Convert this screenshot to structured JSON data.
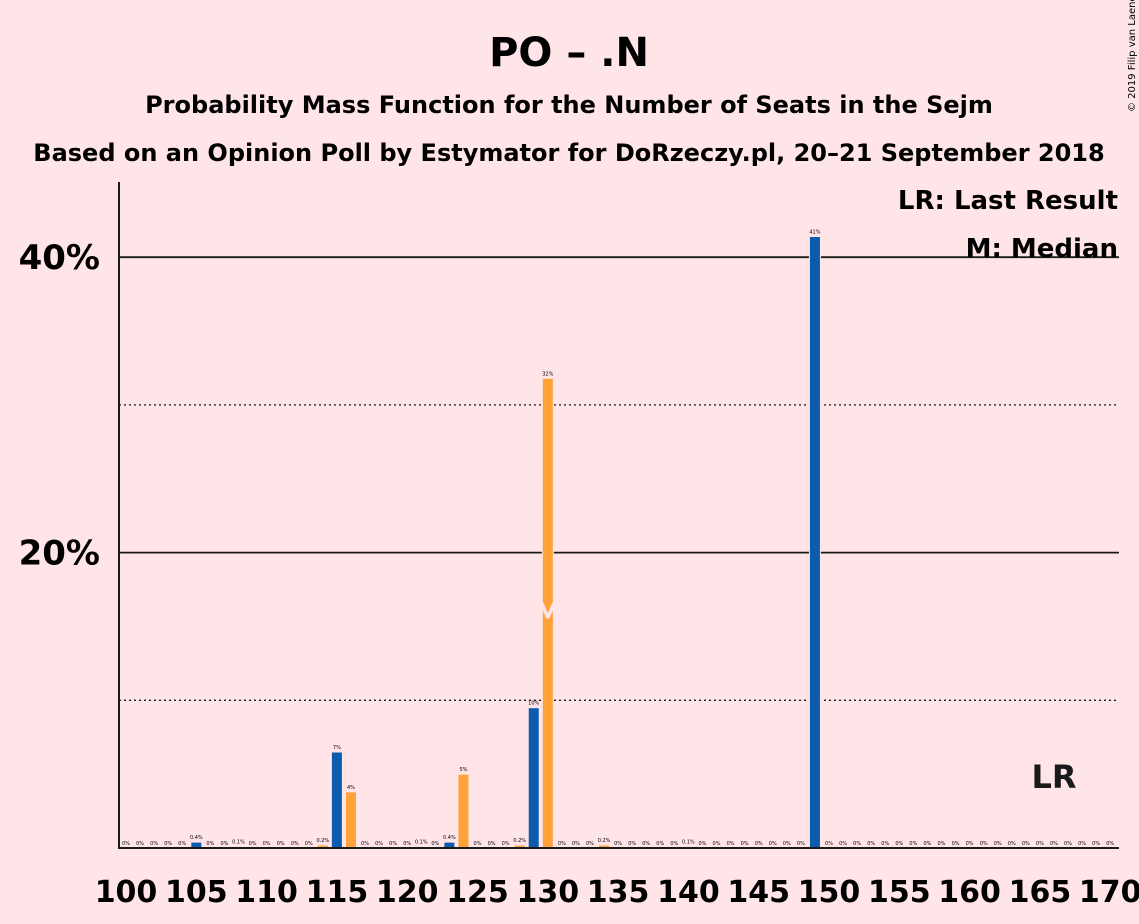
{
  "chart_data": {
    "type": "bar",
    "title": "PO – .N",
    "subtitle": "Probability Mass Function for the Number of Seats in the Sejm",
    "subtitle2": "Based on an Opinion Poll by Estymator for DoRzeczy.pl, 20–21 September 2018",
    "credit": "© 2019 Filip van Laenen",
    "legend": {
      "lr": "LR: Last Result",
      "m": "M: Median",
      "placement": "top-right"
    },
    "lr_marker": {
      "label": "LR",
      "seats": 166
    },
    "median_marker": {
      "label": "M",
      "seats": 130
    },
    "y_ticks": [
      {
        "value": 20,
        "label": "20%"
      },
      {
        "value": 40,
        "label": "40%"
      }
    ],
    "y_minor": [
      10,
      30
    ],
    "ylim": [
      0,
      45
    ],
    "xlim": [
      100,
      170
    ],
    "x_ticks": [
      {
        "value": 100,
        "label": "100"
      },
      {
        "value": 105,
        "label": "105"
      },
      {
        "value": 110,
        "label": "110"
      },
      {
        "value": 115,
        "label": "115"
      },
      {
        "value": 120,
        "label": "120"
      },
      {
        "value": 125,
        "label": "125"
      },
      {
        "value": 130,
        "label": "130"
      },
      {
        "value": 135,
        "label": "135"
      },
      {
        "value": 140,
        "label": "140"
      },
      {
        "value": 145,
        "label": "145"
      },
      {
        "value": 150,
        "label": "150"
      },
      {
        "value": 155,
        "label": "155"
      },
      {
        "value": 160,
        "label": "160"
      },
      {
        "value": 165,
        "label": "165"
      },
      {
        "value": 170,
        "label": "170"
      }
    ],
    "colors": {
      "odd": "#0B5CAD",
      "even": "#FFA23A",
      "background": "#FFE4E8",
      "axis": "#1a1a1a"
    },
    "bars": [
      {
        "seats": 100,
        "value": 0,
        "label": "0%"
      },
      {
        "seats": 101,
        "value": 0,
        "label": "0%"
      },
      {
        "seats": 102,
        "value": 0,
        "label": "0%"
      },
      {
        "seats": 103,
        "value": 0,
        "label": "0%"
      },
      {
        "seats": 104,
        "value": 0,
        "label": "0%"
      },
      {
        "seats": 105,
        "value": 0.4,
        "label": "0.4%"
      },
      {
        "seats": 106,
        "value": 0,
        "label": "0%"
      },
      {
        "seats": 107,
        "value": 0,
        "label": "0%"
      },
      {
        "seats": 108,
        "value": 0.1,
        "label": "0.1%"
      },
      {
        "seats": 109,
        "value": 0,
        "label": "0%"
      },
      {
        "seats": 110,
        "value": 0,
        "label": "0%"
      },
      {
        "seats": 111,
        "value": 0,
        "label": "0%"
      },
      {
        "seats": 112,
        "value": 0,
        "label": "0%"
      },
      {
        "seats": 113,
        "value": 0,
        "label": "0%"
      },
      {
        "seats": 114,
        "value": 0.2,
        "label": "0.2%"
      },
      {
        "seats": 115,
        "value": 6.5,
        "label": "7%"
      },
      {
        "seats": 116,
        "value": 3.8,
        "label": "4%"
      },
      {
        "seats": 117,
        "value": 0,
        "label": "0%"
      },
      {
        "seats": 118,
        "value": 0,
        "label": "0%"
      },
      {
        "seats": 119,
        "value": 0,
        "label": "0%"
      },
      {
        "seats": 120,
        "value": 0,
        "label": "0%"
      },
      {
        "seats": 121,
        "value": 0.1,
        "label": "0.1%"
      },
      {
        "seats": 122,
        "value": 0,
        "label": "0%"
      },
      {
        "seats": 123,
        "value": 0.4,
        "label": "0.4%"
      },
      {
        "seats": 124,
        "value": 5.0,
        "label": "5%"
      },
      {
        "seats": 125,
        "value": 0,
        "label": "0%"
      },
      {
        "seats": 126,
        "value": 0,
        "label": "0%"
      },
      {
        "seats": 127,
        "value": 0,
        "label": "0%"
      },
      {
        "seats": 128,
        "value": 0.2,
        "label": "0.2%"
      },
      {
        "seats": 129,
        "value": 9.5,
        "label": "10%"
      },
      {
        "seats": 130,
        "value": 31.8,
        "label": "32%"
      },
      {
        "seats": 131,
        "value": 0,
        "label": "0%"
      },
      {
        "seats": 132,
        "value": 0,
        "label": "0%"
      },
      {
        "seats": 133,
        "value": 0,
        "label": "0%"
      },
      {
        "seats": 134,
        "value": 0.2,
        "label": "0.2%"
      },
      {
        "seats": 135,
        "value": 0,
        "label": "0%"
      },
      {
        "seats": 136,
        "value": 0,
        "label": "0%"
      },
      {
        "seats": 137,
        "value": 0,
        "label": "0%"
      },
      {
        "seats": 138,
        "value": 0,
        "label": "0%"
      },
      {
        "seats": 139,
        "value": 0,
        "label": "0%"
      },
      {
        "seats": 140,
        "value": 0.1,
        "label": "0.1%"
      },
      {
        "seats": 141,
        "value": 0,
        "label": "0%"
      },
      {
        "seats": 142,
        "value": 0,
        "label": "0%"
      },
      {
        "seats": 143,
        "value": 0,
        "label": "0%"
      },
      {
        "seats": 144,
        "value": 0,
        "label": "0%"
      },
      {
        "seats": 145,
        "value": 0,
        "label": "0%"
      },
      {
        "seats": 146,
        "value": 0,
        "label": "0%"
      },
      {
        "seats": 147,
        "value": 0,
        "label": "0%"
      },
      {
        "seats": 148,
        "value": 0,
        "label": "0%"
      },
      {
        "seats": 149,
        "value": 41.4,
        "label": "41%"
      },
      {
        "seats": 150,
        "value": 0,
        "label": "0%"
      },
      {
        "seats": 151,
        "value": 0,
        "label": "0%"
      },
      {
        "seats": 152,
        "value": 0,
        "label": "0%"
      },
      {
        "seats": 153,
        "value": 0,
        "label": "0%"
      },
      {
        "seats": 154,
        "value": 0,
        "label": "0%"
      },
      {
        "seats": 155,
        "value": 0,
        "label": "0%"
      },
      {
        "seats": 156,
        "value": 0,
        "label": "0%"
      },
      {
        "seats": 157,
        "value": 0,
        "label": "0%"
      },
      {
        "seats": 158,
        "value": 0,
        "label": "0%"
      },
      {
        "seats": 159,
        "value": 0,
        "label": "0%"
      },
      {
        "seats": 160,
        "value": 0,
        "label": "0%"
      },
      {
        "seats": 161,
        "value": 0,
        "label": "0%"
      },
      {
        "seats": 162,
        "value": 0,
        "label": "0%"
      },
      {
        "seats": 163,
        "value": 0,
        "label": "0%"
      },
      {
        "seats": 164,
        "value": 0,
        "label": "0%"
      },
      {
        "seats": 165,
        "value": 0,
        "label": "0%"
      },
      {
        "seats": 166,
        "value": 0,
        "label": "0%"
      },
      {
        "seats": 167,
        "value": 0,
        "label": "0%"
      },
      {
        "seats": 168,
        "value": 0,
        "label": "0%"
      },
      {
        "seats": 169,
        "value": 0,
        "label": "0%"
      },
      {
        "seats": 170,
        "value": 0,
        "label": "0%"
      }
    ]
  }
}
